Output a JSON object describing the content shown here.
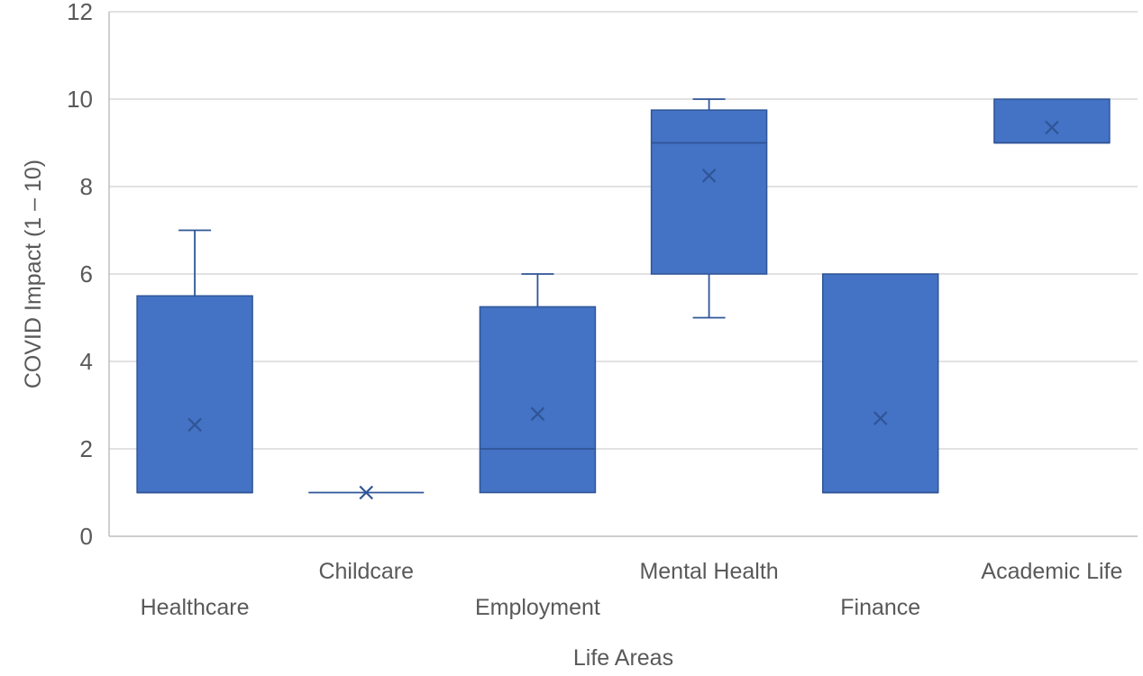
{
  "chart_data": {
    "type": "box",
    "xlabel": "Life Areas",
    "ylabel": "COVID Impact (1 – 10)",
    "ylim": [
      0,
      12
    ],
    "yticks": [
      "0",
      "2",
      "4",
      "6",
      "8",
      "10",
      "12"
    ],
    "grid": true,
    "categories": [
      "Healthcare",
      "Childcare",
      "Employment",
      "Mental Health",
      "Finance",
      "Academic Life"
    ],
    "boxes": [
      {
        "category": "Healthcare",
        "min": 1,
        "q1": 1,
        "median": 1,
        "q3": 5.5,
        "max": 7,
        "mean": 2.55
      },
      {
        "category": "Childcare",
        "min": 1,
        "q1": 1,
        "median": 1,
        "q3": 1,
        "max": 1,
        "mean": 1
      },
      {
        "category": "Employment",
        "min": 1,
        "q1": 1,
        "median": 2,
        "q3": 5.25,
        "max": 6,
        "mean": 2.8
      },
      {
        "category": "Mental Health",
        "min": 5,
        "q1": 6,
        "median": 9,
        "q3": 9.75,
        "max": 10,
        "mean": 8.25
      },
      {
        "category": "Finance",
        "min": 1,
        "q1": 1,
        "median": 1,
        "q3": 6,
        "max": 6,
        "mean": 2.7
      },
      {
        "category": "Academic Life",
        "min": 9,
        "q1": 9,
        "median": 9,
        "q3": 10,
        "max": 10,
        "mean": 9.35
      }
    ],
    "colors": {
      "box_fill": "#4472C4",
      "box_edge": "#2F5597",
      "median": "#2F5597",
      "mean_marker": "#2F5597",
      "whisker": "#2F5597",
      "grid": "#D9D9D9",
      "axis": "#BFBFBF"
    }
  }
}
